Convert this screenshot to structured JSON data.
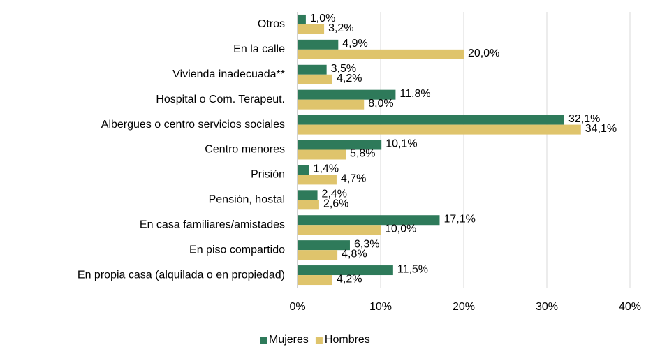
{
  "chart_data": {
    "type": "bar",
    "orientation": "horizontal",
    "categories": [
      "Otros",
      "En la calle",
      "Vivienda inadecuada**",
      "Hospital o Com. Terapeut.",
      "Albergues o centro servicios sociales",
      "Centro menores",
      "Prisión",
      "Pensión, hostal",
      "En casa familiares/amistades",
      "En piso compartido",
      "En propia casa (alquilada o en propiedad)"
    ],
    "series": [
      {
        "name": "Mujeres",
        "color": "#2e7a5a",
        "values": [
          1.0,
          4.9,
          3.5,
          11.8,
          32.1,
          10.1,
          1.4,
          2.4,
          17.1,
          6.3,
          11.5
        ],
        "value_labels": [
          "1,0%",
          "4,9%",
          "3,5%",
          "11,8%",
          "32,1%",
          "10,1%",
          "1,4%",
          "2,4%",
          "17,1%",
          "6,3%",
          "11,5%"
        ]
      },
      {
        "name": "Hombres",
        "color": "#dfc46c",
        "values": [
          3.2,
          20.0,
          4.2,
          8.0,
          34.1,
          5.8,
          4.7,
          2.6,
          10.0,
          4.8,
          4.2
        ],
        "value_labels": [
          "3,2%",
          "20,0%",
          "4,2%",
          "8,0%",
          "34,1%",
          "5,8%",
          "4,7%",
          "2,6%",
          "10,0%",
          "4,8%",
          "4,2%"
        ]
      }
    ],
    "xlim": [
      0,
      40
    ],
    "xticks": [
      {
        "value": 0,
        "label": "0%"
      },
      {
        "value": 10,
        "label": "10%"
      },
      {
        "value": 20,
        "label": "20%"
      },
      {
        "value": 30,
        "label": "30%"
      },
      {
        "value": 40,
        "label": "40%"
      }
    ],
    "grid": true,
    "legend": "bottom"
  }
}
